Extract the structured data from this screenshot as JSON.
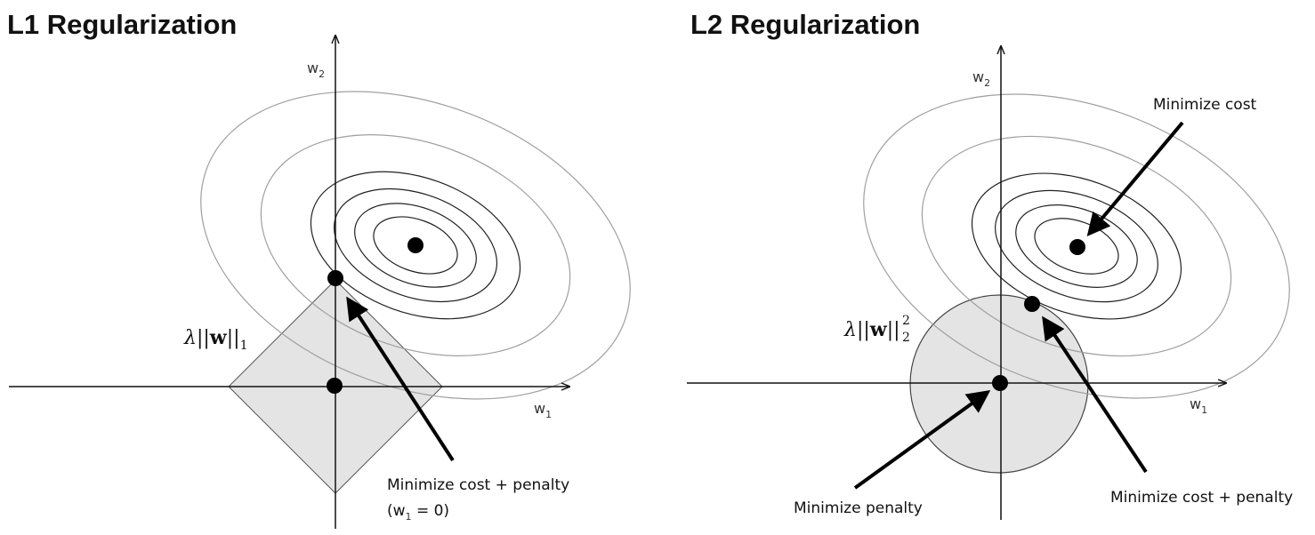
{
  "left_panel": {
    "title": "L1 Regularization",
    "axis_x": {
      "base": "w",
      "sub": "1"
    },
    "axis_y": {
      "base": "w",
      "sub": "2"
    },
    "penalty_label": {
      "lambda": "λ",
      "norm_open": "||",
      "w": "w",
      "norm_close": "||",
      "sub": "1"
    },
    "annotation": {
      "line1": "Minimize cost + penalty",
      "line2_open": "(w",
      "line2_sub": "1",
      "line2_close": " = 0)"
    }
  },
  "right_panel": {
    "title": "L2 Regularization",
    "axis_x": {
      "base": "w",
      "sub": "1"
    },
    "axis_y": {
      "base": "w",
      "sub": "2"
    },
    "penalty_label": {
      "lambda": "λ",
      "norm_open": "||",
      "w": "w",
      "norm_close": "||",
      "sub": "2",
      "sup": "2"
    },
    "annotations": {
      "minimize_cost": "Minimize cost",
      "minimize_penalty": "Minimize penalty",
      "minimize_cost_penalty": "Minimize cost + penalty"
    }
  },
  "colors": {
    "region_fill": "#e4e4e4",
    "outer_contour": "#9a9a9a",
    "inner_contour": "#222222",
    "axis": "#111111"
  }
}
